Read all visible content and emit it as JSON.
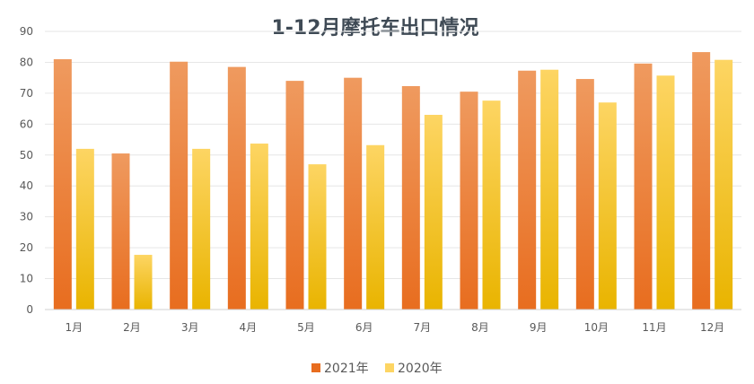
{
  "chart_data": {
    "type": "bar",
    "title": "1-12月摩托车出口情况",
    "categories": [
      "1月",
      "2月",
      "3月",
      "4月",
      "5月",
      "6月",
      "7月",
      "8月",
      "9月",
      "10月",
      "11月",
      "12月"
    ],
    "series": [
      {
        "name": "2021年",
        "values": [
          81,
          50.5,
          80.2,
          78.5,
          74,
          75,
          72.3,
          70.5,
          77.3,
          74.6,
          79.6,
          83.3
        ]
      },
      {
        "name": "2020年",
        "values": [
          52,
          17.7,
          52,
          53.7,
          47,
          53.2,
          63,
          67.6,
          77.6,
          67,
          75.7,
          80.8
        ]
      }
    ],
    "ylim": [
      0,
      90
    ],
    "yticks": [
      0,
      10,
      20,
      30,
      40,
      50,
      60,
      70,
      80,
      90
    ],
    "grid": true,
    "legend_position": "bottom",
    "colors": {
      "2021年": {
        "top": "#ef9a5f",
        "bottom": "#e86d1f"
      },
      "2020年": {
        "top": "#fdd563",
        "bottom": "#e9b400"
      }
    }
  }
}
